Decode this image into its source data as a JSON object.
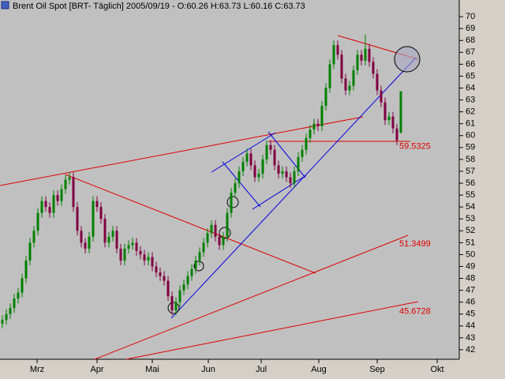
{
  "chart_data": {
    "type": "candlestick",
    "title": "Brent Oil Spot [BRT-  Täglich] 2005/09/19 - O:60.26 H:63.73 L:60.16 C:63.73",
    "up_color": "#008000",
    "down_color": "#800040",
    "ylim": [
      41.2,
      71.4
    ],
    "yticks": [
      42,
      43,
      44,
      45,
      46,
      47,
      48,
      49,
      50,
      51,
      52,
      53,
      54,
      55,
      56,
      57,
      58,
      59,
      60,
      61,
      62,
      63,
      64,
      65,
      66,
      67,
      68,
      69,
      70
    ],
    "xlim": [
      -0.6,
      115.4
    ],
    "xticks": [
      {
        "value": 8.8,
        "label": "Mrz"
      },
      {
        "value": 24,
        "label": "Apr"
      },
      {
        "value": 38,
        "label": "Mai"
      },
      {
        "value": 52.2,
        "label": "Jun"
      },
      {
        "value": 65.6,
        "label": "Jul"
      },
      {
        "value": 80.2,
        "label": "Aug"
      },
      {
        "value": 95,
        "label": "Sep"
      },
      {
        "value": 110.2,
        "label": "Okt"
      }
    ],
    "levels": [
      59.5325,
      51.3499,
      45.6728
    ],
    "candles": [
      [
        44.2,
        44.9,
        43.8,
        44.5
      ],
      [
        44.5,
        45.4,
        44.1,
        45
      ],
      [
        45,
        45.9,
        44.6,
        45.5
      ],
      [
        45.5,
        46.7,
        45.1,
        46.3
      ],
      [
        46.3,
        47.2,
        45.9,
        46.8
      ],
      [
        46.8,
        48.4,
        46.4,
        48
      ],
      [
        48,
        49.9,
        47.6,
        49.5
      ],
      [
        49.5,
        51.4,
        49.1,
        51
      ],
      [
        51,
        52.4,
        50.6,
        52
      ],
      [
        52,
        53.9,
        51.6,
        53.5
      ],
      [
        53.5,
        54.9,
        53.1,
        54.5
      ],
      [
        54.5,
        54.9,
        53.6,
        54
      ],
      [
        54,
        54.4,
        53.1,
        53.5
      ],
      [
        53.5,
        55.4,
        53.1,
        55
      ],
      [
        55,
        55.4,
        54.1,
        54.5
      ],
      [
        54.5,
        55.9,
        54.1,
        55.5
      ],
      [
        55.5,
        56.7,
        55.1,
        56.3
      ],
      [
        56.3,
        56.9,
        55.9,
        56.5
      ],
      [
        56.5,
        56.9,
        53.6,
        54
      ],
      [
        54,
        54.4,
        51.6,
        52
      ],
      [
        52,
        52.4,
        50.6,
        51
      ],
      [
        51,
        51.4,
        50.1,
        50.5
      ],
      [
        50.5,
        51.9,
        50.1,
        51.5
      ],
      [
        51.5,
        54.9,
        51.1,
        54.5
      ],
      [
        54.5,
        54.9,
        53.6,
        54
      ],
      [
        54,
        54.4,
        52.6,
        53
      ],
      [
        53,
        53.4,
        50.6,
        51
      ],
      [
        51,
        51.9,
        50.6,
        51.5
      ],
      [
        51.5,
        52.4,
        51.1,
        52
      ],
      [
        52,
        52.4,
        50.1,
        50.5
      ],
      [
        50.5,
        50.9,
        49.1,
        49.5
      ],
      [
        49.5,
        50.9,
        49.1,
        50.5
      ],
      [
        50.5,
        51.2,
        50.1,
        50.8
      ],
      [
        50.8,
        51.4,
        50.4,
        51
      ],
      [
        51,
        51.4,
        49.9,
        50.3
      ],
      [
        50.3,
        50.7,
        49.6,
        50
      ],
      [
        50,
        50.4,
        49.1,
        49.5
      ],
      [
        49.5,
        50.2,
        49.1,
        49.8
      ],
      [
        49.8,
        50.2,
        48.6,
        49
      ],
      [
        49,
        49.4,
        48.1,
        48.5
      ],
      [
        48.5,
        48.9,
        47.8,
        48.2
      ],
      [
        48.2,
        48.6,
        47.4,
        47.8
      ],
      [
        47.8,
        48.2,
        46.1,
        46.5
      ],
      [
        46.5,
        46.9,
        44.9,
        45.3
      ],
      [
        45.3,
        46.4,
        44.9,
        46
      ],
      [
        46,
        47.4,
        45.6,
        47
      ],
      [
        47,
        47.9,
        46.6,
        47.5
      ],
      [
        47.5,
        48.6,
        47.1,
        48.2
      ],
      [
        48.2,
        49.2,
        47.8,
        48.8
      ],
      [
        48.8,
        49.9,
        48.4,
        49.5
      ],
      [
        49.5,
        50.6,
        49.1,
        50.2
      ],
      [
        50.2,
        51.4,
        49.8,
        51
      ],
      [
        51,
        52.2,
        50.6,
        51.8
      ],
      [
        51.8,
        52.9,
        51.4,
        52.5
      ],
      [
        52.5,
        52.9,
        51.1,
        51.5
      ],
      [
        51.5,
        51.9,
        50.4,
        50.8
      ],
      [
        50.8,
        51.9,
        50.4,
        51.5
      ],
      [
        51.5,
        53.9,
        51.1,
        53.5
      ],
      [
        53.5,
        55.6,
        53.1,
        55.2
      ],
      [
        55.2,
        56.4,
        54.8,
        56
      ],
      [
        56,
        57.4,
        55.6,
        57
      ],
      [
        57,
        58.2,
        56.6,
        57.8
      ],
      [
        57.8,
        58.9,
        57.4,
        58.5
      ],
      [
        58.5,
        58.9,
        57.1,
        57.5
      ],
      [
        57.5,
        57.9,
        56.1,
        56.5
      ],
      [
        56.5,
        57.2,
        56.1,
        56.8
      ],
      [
        56.8,
        58.4,
        56.4,
        58
      ],
      [
        58,
        59.6,
        57.6,
        59.2
      ],
      [
        59.2,
        59.6,
        58.4,
        58.8
      ],
      [
        58.8,
        59.2,
        57.1,
        57.5
      ],
      [
        57.5,
        57.9,
        56.4,
        56.8
      ],
      [
        56.8,
        57.4,
        56.4,
        57
      ],
      [
        57,
        57.4,
        56.1,
        56.5
      ],
      [
        56.5,
        56.9,
        55.6,
        56
      ],
      [
        56,
        57.4,
        55.6,
        57
      ],
      [
        57,
        58.6,
        56.6,
        58.2
      ],
      [
        58.2,
        59.2,
        57.8,
        58.8
      ],
      [
        58.8,
        60.2,
        58.4,
        59.8
      ],
      [
        59.8,
        60.9,
        59.4,
        60.5
      ],
      [
        60.5,
        61.4,
        60.1,
        61
      ],
      [
        61,
        61.4,
        60.4,
        60.8
      ],
      [
        60.8,
        62.9,
        60.4,
        62.5
      ],
      [
        62.5,
        64.4,
        62.1,
        64
      ],
      [
        64,
        66.4,
        63.6,
        66
      ],
      [
        66,
        68,
        65.6,
        67.6
      ],
      [
        67.6,
        68,
        66.4,
        66.8
      ],
      [
        66.8,
        67.2,
        64.4,
        64.8
      ],
      [
        64.8,
        65.2,
        63.4,
        63.8
      ],
      [
        63.8,
        64.6,
        63.4,
        64.2
      ],
      [
        64.2,
        65.9,
        63.8,
        65.5
      ],
      [
        65.5,
        67.2,
        65.1,
        66.8
      ],
      [
        66.8,
        67.2,
        65.9,
        66.3
      ],
      [
        66.3,
        68.5,
        65.9,
        67.3
      ],
      [
        67.3,
        67.7,
        65.8,
        66.2
      ],
      [
        66.2,
        66.6,
        64.8,
        65.2
      ],
      [
        65.2,
        65.6,
        63.4,
        63.8
      ],
      [
        63.8,
        64.2,
        62.4,
        62.8
      ],
      [
        62.8,
        63.2,
        60.9,
        61.3
      ],
      [
        61.3,
        62,
        60.9,
        61.6
      ],
      [
        61.6,
        62,
        60.2,
        60.6
      ],
      [
        60.6,
        61,
        59.2,
        59.6
      ],
      [
        60.26,
        63.73,
        60.16,
        63.73
      ]
    ]
  }
}
